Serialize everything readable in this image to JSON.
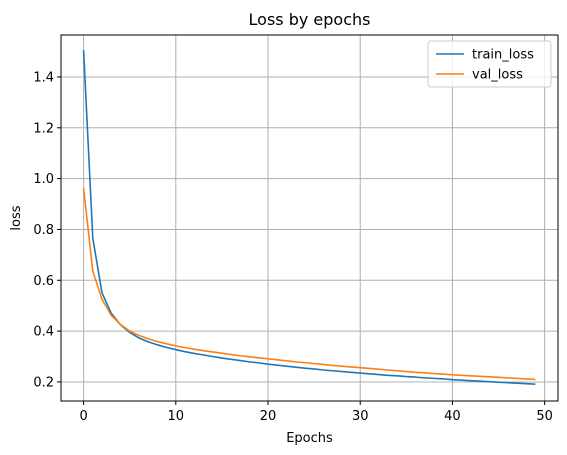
{
  "chart_data": {
    "type": "line",
    "title": "Loss by epochs",
    "xlabel": "Epochs",
    "ylabel": "loss",
    "xlim": [
      -2.45,
      51.45
    ],
    "ylim": [
      0.125,
      1.565
    ],
    "xticks": [
      0,
      10,
      20,
      30,
      40,
      50
    ],
    "yticks": [
      0.2,
      0.4,
      0.6,
      0.8,
      1.0,
      1.2,
      1.4
    ],
    "ytick_labels": [
      "0.2",
      "0.4",
      "0.6",
      "0.8",
      "1.0",
      "1.2",
      "1.4"
    ],
    "grid": true,
    "legend_position": "top-right",
    "x": [
      0,
      1,
      2,
      3,
      4,
      5,
      6,
      7,
      8,
      9,
      10,
      11,
      12,
      13,
      14,
      15,
      16,
      17,
      18,
      19,
      20,
      21,
      22,
      23,
      24,
      25,
      26,
      27,
      28,
      29,
      30,
      31,
      32,
      33,
      34,
      35,
      36,
      37,
      38,
      39,
      40,
      41,
      42,
      43,
      44,
      45,
      46,
      47,
      48,
      49
    ],
    "series": [
      {
        "name": "train_loss",
        "color": "#1f77b4",
        "values": [
          1.505,
          0.765,
          0.55,
          0.47,
          0.425,
          0.395,
          0.373,
          0.358,
          0.346,
          0.336,
          0.327,
          0.319,
          0.312,
          0.306,
          0.3,
          0.294,
          0.289,
          0.284,
          0.279,
          0.275,
          0.27,
          0.266,
          0.262,
          0.258,
          0.254,
          0.251,
          0.247,
          0.244,
          0.241,
          0.238,
          0.235,
          0.232,
          0.229,
          0.226,
          0.224,
          0.221,
          0.219,
          0.216,
          0.214,
          0.212,
          0.209,
          0.207,
          0.205,
          0.203,
          0.201,
          0.199,
          0.197,
          0.195,
          0.193,
          0.191
        ]
      },
      {
        "name": "val_loss",
        "color": "#ff7f0e",
        "values": [
          0.962,
          0.635,
          0.525,
          0.462,
          0.426,
          0.4,
          0.383,
          0.37,
          0.359,
          0.35,
          0.342,
          0.335,
          0.329,
          0.323,
          0.318,
          0.313,
          0.308,
          0.303,
          0.299,
          0.295,
          0.291,
          0.287,
          0.283,
          0.279,
          0.276,
          0.272,
          0.269,
          0.265,
          0.262,
          0.259,
          0.256,
          0.253,
          0.25,
          0.247,
          0.244,
          0.241,
          0.238,
          0.236,
          0.233,
          0.231,
          0.228,
          0.226,
          0.224,
          0.222,
          0.22,
          0.218,
          0.216,
          0.214,
          0.212,
          0.21
        ]
      }
    ]
  }
}
